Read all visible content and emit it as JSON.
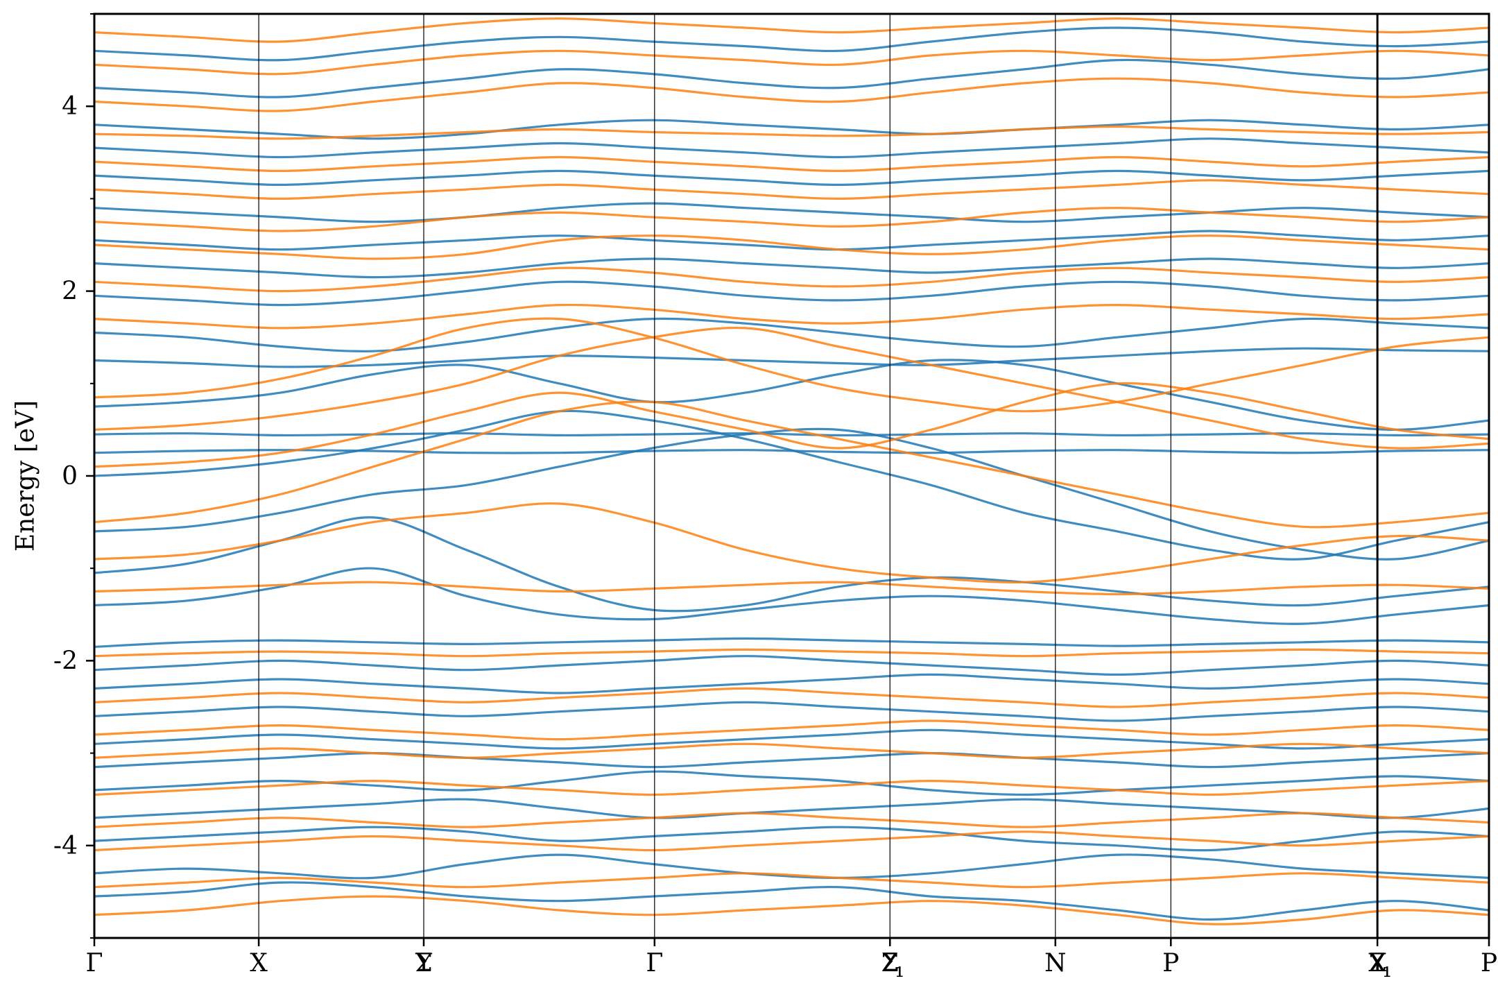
{
  "chart_data": {
    "type": "line",
    "title": "",
    "xlabel": "",
    "ylabel": "Energy [eV]",
    "ylim": [
      -5,
      5
    ],
    "yticks": [
      -4,
      -2,
      0,
      2,
      4
    ],
    "ytick_labels": [
      "-4",
      "-2",
      "0",
      "2",
      "4"
    ],
    "y_minor_step": 1,
    "grid": false,
    "legend": "none",
    "segments": [
      {
        "start": 0.0,
        "end": 1.0
      },
      {
        "start": 1.0,
        "end": 1.0
      }
    ],
    "kpoints": [
      {
        "label": "Γ",
        "x": 0.0
      },
      {
        "label": "X",
        "x": 0.1179
      },
      {
        "label": "Y",
        "x": 0.2362
      },
      {
        "label": "Σ",
        "x": 0.2362
      },
      {
        "label": "Γ",
        "x": 0.4017
      },
      {
        "label": "Z",
        "x": 0.5705
      },
      {
        "label": "Σ",
        "x": 0.5705
      },
      {
        "label": "₁",
        "x": 0.5705
      },
      {
        "label": "N",
        "x": 0.6891
      },
      {
        "label": "P",
        "x": 0.7719
      },
      {
        "label": "Y",
        "x": 0.92
      },
      {
        "label": "₁",
        "x": 0.92
      },
      {
        "label": "Z",
        "x": 0.92
      },
      {
        "label": "X",
        "x": 0.92
      },
      {
        "label": "P",
        "x": 1.0
      }
    ],
    "series": [
      {
        "color": "#1f77b4",
        "bands": [
          [
            -4.55,
            -4.5,
            -4.4,
            -4.45,
            -4.55,
            -4.6,
            -4.55,
            -4.5,
            -4.45,
            -4.55,
            -4.6,
            -4.7,
            -4.8,
            -4.7,
            -4.6,
            -4.7
          ],
          [
            -4.3,
            -4.25,
            -4.3,
            -4.35,
            -4.2,
            -4.1,
            -4.2,
            -4.3,
            -4.35,
            -4.3,
            -4.2,
            -4.1,
            -4.15,
            -4.25,
            -4.3,
            -4.35
          ],
          [
            -3.95,
            -3.9,
            -3.85,
            -3.8,
            -3.85,
            -3.95,
            -3.9,
            -3.85,
            -3.8,
            -3.85,
            -3.95,
            -4.0,
            -4.05,
            -3.95,
            -3.85,
            -3.9
          ],
          [
            -3.7,
            -3.65,
            -3.6,
            -3.55,
            -3.5,
            -3.6,
            -3.7,
            -3.65,
            -3.6,
            -3.55,
            -3.5,
            -3.55,
            -3.6,
            -3.65,
            -3.7,
            -3.6
          ],
          [
            -3.4,
            -3.35,
            -3.3,
            -3.35,
            -3.4,
            -3.3,
            -3.2,
            -3.25,
            -3.3,
            -3.4,
            -3.45,
            -3.4,
            -3.35,
            -3.3,
            -3.25,
            -3.3
          ],
          [
            -3.15,
            -3.1,
            -3.05,
            -3.0,
            -3.05,
            -3.1,
            -3.15,
            -3.1,
            -3.05,
            -3.0,
            -3.05,
            -3.1,
            -3.15,
            -3.1,
            -3.05,
            -3.0
          ],
          [
            -2.9,
            -2.85,
            -2.8,
            -2.85,
            -2.9,
            -2.95,
            -2.9,
            -2.85,
            -2.8,
            -2.75,
            -2.8,
            -2.85,
            -2.9,
            -2.95,
            -2.9,
            -2.85
          ],
          [
            -2.6,
            -2.55,
            -2.5,
            -2.55,
            -2.6,
            -2.55,
            -2.5,
            -2.45,
            -2.5,
            -2.55,
            -2.6,
            -2.65,
            -2.6,
            -2.55,
            -2.5,
            -2.55
          ],
          [
            -2.3,
            -2.25,
            -2.2,
            -2.25,
            -2.3,
            -2.35,
            -2.3,
            -2.25,
            -2.2,
            -2.15,
            -2.2,
            -2.25,
            -2.3,
            -2.25,
            -2.2,
            -2.25
          ],
          [
            -2.1,
            -2.05,
            -2.0,
            -2.05,
            -2.1,
            -2.05,
            -2.0,
            -1.95,
            -2.0,
            -2.05,
            -2.1,
            -2.15,
            -2.1,
            -2.05,
            -2.0,
            -2.05
          ],
          [
            -1.85,
            -1.8,
            -1.78,
            -1.8,
            -1.82,
            -1.8,
            -1.78,
            -1.76,
            -1.78,
            -1.8,
            -1.82,
            -1.84,
            -1.82,
            -1.8,
            -1.78,
            -1.8
          ],
          [
            -1.4,
            -1.35,
            -1.2,
            -1.0,
            -1.3,
            -1.5,
            -1.55,
            -1.45,
            -1.35,
            -1.3,
            -1.35,
            -1.45,
            -1.55,
            -1.6,
            -1.5,
            -1.4
          ],
          [
            -1.05,
            -0.95,
            -0.7,
            -0.45,
            -0.8,
            -1.2,
            -1.45,
            -1.4,
            -1.2,
            -1.1,
            -1.15,
            -1.25,
            -1.35,
            -1.4,
            -1.3,
            -1.2
          ],
          [
            -0.6,
            -0.55,
            -0.4,
            -0.2,
            -0.1,
            0.1,
            0.3,
            0.45,
            0.5,
            0.3,
            0.0,
            -0.3,
            -0.6,
            -0.8,
            -0.9,
            -0.7
          ],
          [
            0.0,
            0.05,
            0.15,
            0.3,
            0.5,
            0.7,
            0.6,
            0.4,
            0.15,
            -0.1,
            -0.4,
            -0.6,
            -0.8,
            -0.9,
            -0.7,
            -0.5
          ],
          [
            0.25,
            0.27,
            0.28,
            0.27,
            0.25,
            0.25,
            0.27,
            0.28,
            0.26,
            0.25,
            0.27,
            0.28,
            0.26,
            0.25,
            0.27,
            0.28
          ],
          [
            0.45,
            0.46,
            0.44,
            0.45,
            0.46,
            0.44,
            0.45,
            0.46,
            0.44,
            0.45,
            0.46,
            0.44,
            0.45,
            0.46,
            0.44,
            0.45
          ],
          [
            0.75,
            0.8,
            0.9,
            1.1,
            1.2,
            1.0,
            0.8,
            0.9,
            1.1,
            1.25,
            1.2,
            1.0,
            0.8,
            0.6,
            0.5,
            0.6
          ],
          [
            1.25,
            1.22,
            1.18,
            1.2,
            1.25,
            1.3,
            1.28,
            1.25,
            1.22,
            1.2,
            1.25,
            1.3,
            1.35,
            1.38,
            1.36,
            1.35
          ],
          [
            1.55,
            1.5,
            1.4,
            1.35,
            1.45,
            1.6,
            1.7,
            1.65,
            1.55,
            1.45,
            1.4,
            1.5,
            1.6,
            1.7,
            1.65,
            1.6
          ],
          [
            1.95,
            1.9,
            1.85,
            1.9,
            2.0,
            2.1,
            2.05,
            1.95,
            1.9,
            1.95,
            2.05,
            2.1,
            2.05,
            1.95,
            1.9,
            1.95
          ],
          [
            2.3,
            2.25,
            2.2,
            2.15,
            2.2,
            2.3,
            2.35,
            2.3,
            2.25,
            2.2,
            2.25,
            2.3,
            2.35,
            2.3,
            2.25,
            2.3
          ],
          [
            2.55,
            2.5,
            2.45,
            2.5,
            2.55,
            2.6,
            2.55,
            2.5,
            2.45,
            2.5,
            2.55,
            2.6,
            2.65,
            2.6,
            2.55,
            2.6
          ],
          [
            2.9,
            2.85,
            2.8,
            2.75,
            2.8,
            2.9,
            2.95,
            2.9,
            2.85,
            2.8,
            2.75,
            2.8,
            2.85,
            2.9,
            2.85,
            2.8
          ],
          [
            3.25,
            3.2,
            3.15,
            3.2,
            3.25,
            3.3,
            3.25,
            3.2,
            3.15,
            3.2,
            3.25,
            3.3,
            3.25,
            3.2,
            3.25,
            3.3
          ],
          [
            3.55,
            3.5,
            3.45,
            3.5,
            3.55,
            3.6,
            3.55,
            3.5,
            3.45,
            3.5,
            3.55,
            3.6,
            3.65,
            3.6,
            3.55,
            3.5
          ],
          [
            3.8,
            3.75,
            3.7,
            3.65,
            3.7,
            3.8,
            3.85,
            3.8,
            3.75,
            3.7,
            3.75,
            3.8,
            3.85,
            3.8,
            3.75,
            3.8
          ],
          [
            4.2,
            4.15,
            4.1,
            4.2,
            4.3,
            4.4,
            4.35,
            4.25,
            4.2,
            4.3,
            4.4,
            4.5,
            4.45,
            4.35,
            4.3,
            4.4
          ],
          [
            4.6,
            4.55,
            4.5,
            4.6,
            4.7,
            4.75,
            4.7,
            4.65,
            4.6,
            4.7,
            4.8,
            4.85,
            4.8,
            4.7,
            4.65,
            4.7
          ]
        ]
      },
      {
        "color": "#ff7f0e",
        "bands": [
          [
            -4.75,
            -4.7,
            -4.6,
            -4.55,
            -4.6,
            -4.7,
            -4.75,
            -4.7,
            -4.65,
            -4.6,
            -4.65,
            -4.75,
            -4.85,
            -4.8,
            -4.7,
            -4.75
          ],
          [
            -4.45,
            -4.4,
            -4.35,
            -4.4,
            -4.45,
            -4.4,
            -4.35,
            -4.3,
            -4.35,
            -4.4,
            -4.45,
            -4.4,
            -4.35,
            -4.3,
            -4.35,
            -4.4
          ],
          [
            -4.05,
            -4.0,
            -3.95,
            -3.9,
            -3.95,
            -4.0,
            -4.05,
            -4.0,
            -3.95,
            -3.9,
            -3.85,
            -3.9,
            -3.95,
            -4.0,
            -3.95,
            -3.9
          ],
          [
            -3.8,
            -3.75,
            -3.7,
            -3.75,
            -3.8,
            -3.75,
            -3.7,
            -3.65,
            -3.7,
            -3.75,
            -3.8,
            -3.75,
            -3.7,
            -3.65,
            -3.7,
            -3.75
          ],
          [
            -3.45,
            -3.4,
            -3.35,
            -3.3,
            -3.35,
            -3.4,
            -3.45,
            -3.4,
            -3.35,
            -3.3,
            -3.35,
            -3.4,
            -3.45,
            -3.4,
            -3.35,
            -3.3
          ],
          [
            -3.05,
            -3.0,
            -2.95,
            -3.0,
            -3.05,
            -3.0,
            -2.95,
            -2.9,
            -2.95,
            -3.0,
            -3.05,
            -3.0,
            -2.95,
            -2.9,
            -2.95,
            -3.0
          ],
          [
            -2.8,
            -2.75,
            -2.7,
            -2.75,
            -2.8,
            -2.85,
            -2.8,
            -2.75,
            -2.7,
            -2.65,
            -2.7,
            -2.75,
            -2.8,
            -2.75,
            -2.7,
            -2.75
          ],
          [
            -2.45,
            -2.4,
            -2.35,
            -2.4,
            -2.45,
            -2.4,
            -2.35,
            -2.3,
            -2.35,
            -2.4,
            -2.45,
            -2.5,
            -2.45,
            -2.4,
            -2.35,
            -2.4
          ],
          [
            -1.95,
            -1.92,
            -1.9,
            -1.92,
            -1.95,
            -1.92,
            -1.9,
            -1.88,
            -1.9,
            -1.92,
            -1.95,
            -1.92,
            -1.9,
            -1.88,
            -1.9,
            -1.92
          ],
          [
            -1.25,
            -1.22,
            -1.18,
            -1.15,
            -1.2,
            -1.25,
            -1.22,
            -1.18,
            -1.15,
            -1.2,
            -1.25,
            -1.28,
            -1.25,
            -1.2,
            -1.18,
            -1.22
          ],
          [
            -0.9,
            -0.85,
            -0.7,
            -0.5,
            -0.4,
            -0.3,
            -0.5,
            -0.8,
            -1.0,
            -1.1,
            -1.15,
            -1.05,
            -0.9,
            -0.75,
            -0.65,
            -0.7
          ],
          [
            -0.5,
            -0.4,
            -0.2,
            0.1,
            0.4,
            0.7,
            0.8,
            0.6,
            0.4,
            0.2,
            0.0,
            -0.2,
            -0.4,
            -0.55,
            -0.5,
            -0.4
          ],
          [
            0.1,
            0.15,
            0.25,
            0.45,
            0.7,
            0.9,
            0.7,
            0.5,
            0.3,
            0.5,
            0.8,
            1.0,
            0.9,
            0.7,
            0.5,
            0.4
          ],
          [
            0.5,
            0.55,
            0.65,
            0.8,
            1.0,
            1.3,
            1.5,
            1.6,
            1.4,
            1.2,
            1.0,
            0.8,
            0.6,
            0.4,
            0.3,
            0.35
          ],
          [
            0.85,
            0.9,
            1.05,
            1.3,
            1.6,
            1.7,
            1.5,
            1.2,
            0.95,
            0.8,
            0.7,
            0.8,
            1.0,
            1.2,
            1.4,
            1.5
          ],
          [
            1.7,
            1.65,
            1.6,
            1.65,
            1.75,
            1.85,
            1.8,
            1.7,
            1.65,
            1.7,
            1.8,
            1.85,
            1.8,
            1.75,
            1.7,
            1.75
          ],
          [
            2.1,
            2.05,
            2.0,
            2.05,
            2.15,
            2.25,
            2.2,
            2.1,
            2.05,
            2.1,
            2.2,
            2.25,
            2.2,
            2.15,
            2.1,
            2.15
          ],
          [
            2.5,
            2.45,
            2.4,
            2.35,
            2.4,
            2.55,
            2.6,
            2.55,
            2.45,
            2.4,
            2.45,
            2.55,
            2.6,
            2.55,
            2.5,
            2.45
          ],
          [
            2.75,
            2.7,
            2.65,
            2.7,
            2.8,
            2.85,
            2.8,
            2.75,
            2.7,
            2.75,
            2.85,
            2.9,
            2.85,
            2.8,
            2.75,
            2.8
          ],
          [
            3.1,
            3.05,
            3.0,
            3.05,
            3.1,
            3.15,
            3.1,
            3.05,
            3.0,
            3.05,
            3.1,
            3.15,
            3.2,
            3.15,
            3.1,
            3.05
          ],
          [
            3.4,
            3.35,
            3.3,
            3.35,
            3.4,
            3.45,
            3.4,
            3.35,
            3.3,
            3.35,
            3.4,
            3.45,
            3.4,
            3.35,
            3.4,
            3.45
          ],
          [
            3.7,
            3.68,
            3.65,
            3.68,
            3.72,
            3.75,
            3.72,
            3.7,
            3.68,
            3.7,
            3.75,
            3.78,
            3.75,
            3.72,
            3.7,
            3.72
          ],
          [
            4.05,
            4.0,
            3.95,
            4.05,
            4.15,
            4.25,
            4.2,
            4.1,
            4.05,
            4.15,
            4.25,
            4.3,
            4.25,
            4.15,
            4.1,
            4.15
          ],
          [
            4.45,
            4.4,
            4.35,
            4.45,
            4.55,
            4.6,
            4.55,
            4.5,
            4.45,
            4.55,
            4.6,
            4.55,
            4.5,
            4.55,
            4.6,
            4.55
          ],
          [
            4.8,
            4.75,
            4.7,
            4.8,
            4.9,
            4.95,
            4.9,
            4.85,
            4.8,
            4.85,
            4.9,
            4.95,
            4.9,
            4.85,
            4.8,
            4.85
          ]
        ]
      }
    ]
  }
}
